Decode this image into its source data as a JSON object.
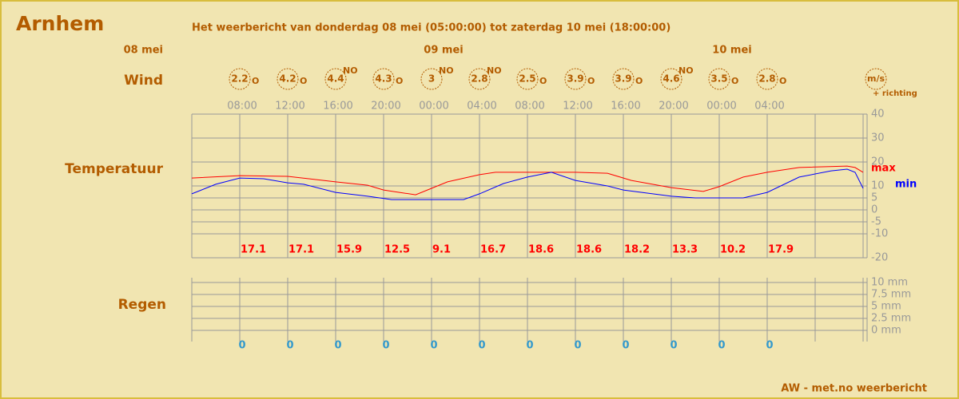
{
  "title": "Arnhem",
  "subtitle": "Het weerbericht van donderdag 08 mei (05:00:00) tot zaterdag 10 mei (18:00:00)",
  "dates": [
    "08 mei",
    "09 mei",
    "10 mei"
  ],
  "times": [
    "08:00",
    "12:00",
    "16:00",
    "20:00",
    "00:00",
    "04:00",
    "08:00",
    "12:00",
    "16:00",
    "20:00",
    "00:00",
    "04:00"
  ],
  "wind": {
    "label": "Wind",
    "unit": "m/s",
    "unit_note": "+ richting",
    "items": [
      {
        "speed": 2.2,
        "dir": "O"
      },
      {
        "speed": 4.2,
        "dir": "O"
      },
      {
        "speed": 4.4,
        "dir": "NO"
      },
      {
        "speed": 4.3,
        "dir": "O"
      },
      {
        "speed": 3,
        "dir": "NO"
      },
      {
        "speed": 2.8,
        "dir": "NO"
      },
      {
        "speed": 2.5,
        "dir": "O"
      },
      {
        "speed": 3.9,
        "dir": "O"
      },
      {
        "speed": 3.9,
        "dir": "O"
      },
      {
        "speed": 4.6,
        "dir": "NO"
      },
      {
        "speed": 3.5,
        "dir": "O"
      },
      {
        "speed": 2.8,
        "dir": "O"
      }
    ]
  },
  "chart_data": [
    {
      "type": "line",
      "label": "Temperatuur",
      "xlim": [
        0,
        56
      ],
      "ylim": [
        -20,
        40
      ],
      "yticks": [
        40,
        30,
        20,
        10,
        5,
        0,
        -5,
        -10,
        -20
      ],
      "series": [
        {
          "name": "max",
          "color": "#ff0000",
          "x": [
            0,
            4,
            8,
            12,
            14.67,
            16,
            18.67,
            20,
            21.33,
            24,
            25.33,
            32,
            34.67,
            36.67,
            40,
            42.67,
            44,
            46,
            48,
            50.67,
            54.67,
            55.33,
            56
          ],
          "values": [
            13.3,
            14.3,
            14,
            11.7,
            10.3,
            8.3,
            6.3,
            9,
            11.7,
            14.7,
            15.7,
            15.7,
            15.3,
            12.3,
            9.3,
            7.7,
            9.7,
            13.7,
            15.7,
            17.7,
            18.3,
            17.7,
            15.7
          ]
        },
        {
          "name": "min",
          "color": "#0000ff",
          "x": [
            0,
            2,
            4,
            6,
            8,
            9.33,
            12,
            14.67,
            16.67,
            22.67,
            24,
            26,
            28,
            30,
            32,
            34.67,
            36,
            40,
            42,
            46,
            48,
            50.67,
            53.33,
            54.67,
            55.33,
            56
          ],
          "values": [
            6.7,
            10.7,
            13.3,
            13,
            11.3,
            10.7,
            7.3,
            5.7,
            4.3,
            4.3,
            6.7,
            11,
            13.7,
            15.7,
            12.3,
            10,
            8.3,
            5.7,
            5,
            5,
            7.3,
            13.7,
            16.3,
            17,
            15.7,
            9
          ]
        }
      ],
      "period_max": [
        17.1,
        17.1,
        15.9,
        12.5,
        9.1,
        16.7,
        18.6,
        18.6,
        18.2,
        13.3,
        10.2,
        17.9
      ]
    },
    {
      "type": "bar",
      "label": "Regen",
      "ylim": [
        0,
        10
      ],
      "yticks": [
        {
          "value": 10,
          "label": "10 mm"
        },
        {
          "value": 7.5,
          "label": "7.5 mm"
        },
        {
          "value": 5,
          "label": "5 mm"
        },
        {
          "value": 2.5,
          "label": "2.5 mm"
        },
        {
          "value": 0,
          "label": "0 mm"
        }
      ],
      "color": "#3399cc",
      "values": [
        0,
        0,
        0,
        0,
        0,
        0,
        0,
        0,
        0,
        0,
        0,
        0
      ]
    }
  ],
  "footer": "AW - met.no weerbericht"
}
